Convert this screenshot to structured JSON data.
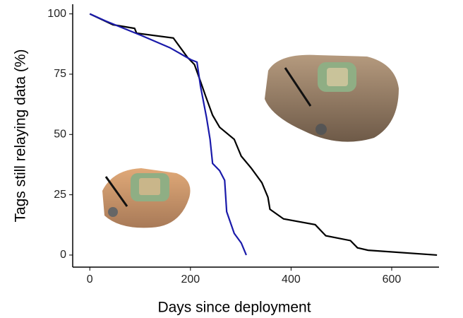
{
  "chart_data": {
    "type": "line",
    "xlabel": "Days since deployment",
    "ylabel": "Tags still relaying data (%)",
    "xlim": [
      -34,
      694
    ],
    "ylim": [
      -5,
      104
    ],
    "xticks": [
      0,
      200,
      400,
      600
    ],
    "yticks": [
      0,
      25,
      50,
      75,
      100
    ],
    "grid": false,
    "series": [
      {
        "color": "#000000",
        "x": [
          0,
          46,
          89,
          93,
          166,
          180,
          194,
          208,
          220,
          230,
          244,
          258,
          287,
          301,
          321,
          342,
          354,
          358,
          385,
          448,
          469,
          518,
          532,
          553,
          690
        ],
        "values": [
          100,
          95.5,
          94,
          92,
          90,
          86,
          82,
          79,
          72,
          66,
          58,
          53,
          48,
          41,
          36,
          30,
          24,
          19,
          15,
          12.6,
          8,
          6,
          3,
          2,
          0
        ]
      },
      {
        "color": "#1a1aaa",
        "x": [
          0,
          32,
          103,
          159,
          201,
          213,
          220,
          232,
          239,
          244,
          258,
          268,
          272,
          287,
          301,
          311
        ],
        "values": [
          100,
          97,
          91,
          86,
          81,
          80,
          70,
          57,
          48,
          38,
          35,
          31,
          18,
          9,
          5,
          0
        ]
      }
    ]
  }
}
